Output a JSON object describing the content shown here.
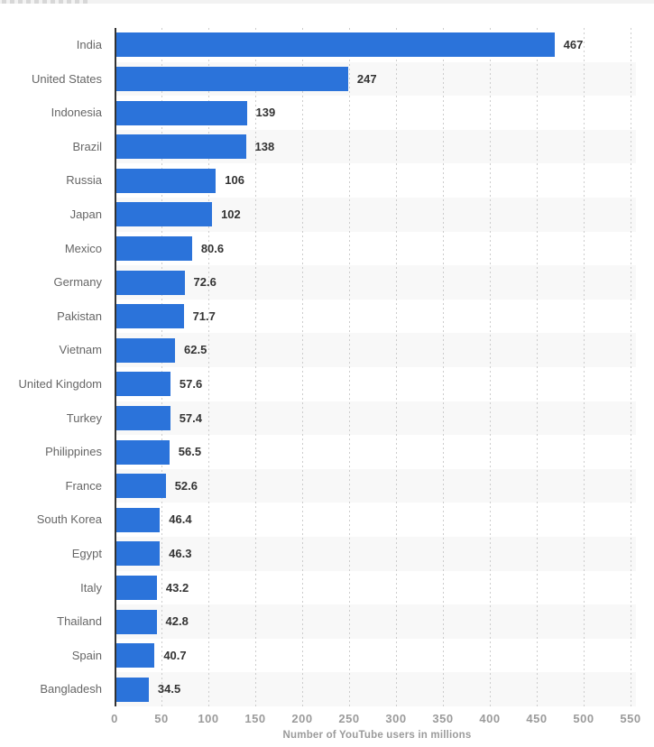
{
  "chart_data": {
    "type": "bar",
    "orientation": "horizontal",
    "title": "",
    "xlabel": "Number of YouTube users in millions",
    "ylabel": "",
    "categories": [
      "India",
      "United States",
      "Indonesia",
      "Brazil",
      "Russia",
      "Japan",
      "Mexico",
      "Germany",
      "Pakistan",
      "Vietnam",
      "United Kingdom",
      "Turkey",
      "Philippines",
      "France",
      "South Korea",
      "Egypt",
      "Italy",
      "Thailand",
      "Spain",
      "Bangladesh"
    ],
    "values": [
      467,
      247,
      139,
      138,
      106,
      102,
      80.6,
      72.6,
      71.7,
      62.5,
      57.6,
      57.4,
      56.5,
      52.6,
      46.4,
      46.3,
      43.2,
      42.8,
      40.7,
      34.5
    ],
    "value_labels": [
      "467",
      "247",
      "139",
      "138",
      "106",
      "102",
      "80.6",
      "72.6",
      "71.7",
      "62.5",
      "57.6",
      "57.4",
      "56.5",
      "52.6",
      "46.4",
      "46.3",
      "43.2",
      "42.8",
      "40.7",
      "34.5"
    ],
    "x_ticks": [
      0,
      50,
      100,
      150,
      200,
      250,
      300,
      350,
      400,
      450,
      500,
      550
    ],
    "xlim": [
      0,
      555
    ],
    "grid": "vertical-dotted",
    "legend": "none",
    "colors": {
      "bar": "#2b73da",
      "row_band": "#f8f8f8",
      "grid": "#cccccc",
      "axis_line": "#333333",
      "category_label": "#666666",
      "value_label": "#333333",
      "tick_label": "#9b9b9b",
      "axis_title": "#9b9b9b"
    }
  }
}
